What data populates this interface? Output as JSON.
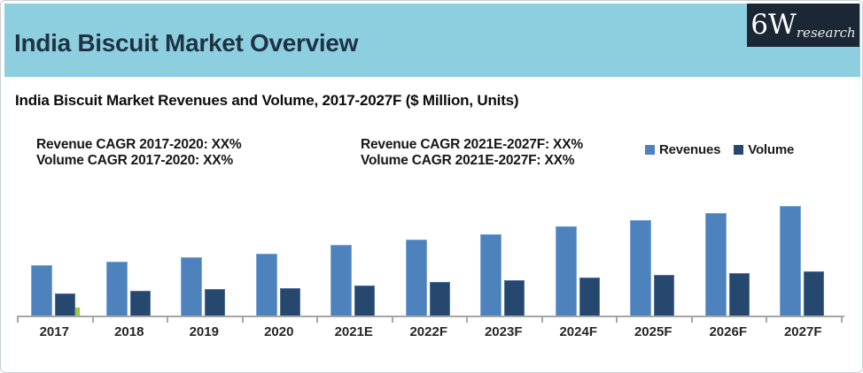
{
  "header": {
    "title": "India Biscuit Market Overview",
    "logo": {
      "main": "6W",
      "sub": "research"
    }
  },
  "subtitle": "India Biscuit Market Revenues and Volume, 2017-2027F ($ Million, Units)",
  "cagr": {
    "left": [
      "Revenue CAGR 2017-2020: XX%",
      "Volume CAGR 2017-2020: XX%"
    ],
    "right": [
      "Revenue CAGR 2021E-2027F: XX%",
      "Volume CAGR 2021E-2027F: XX%"
    ]
  },
  "legend": [
    {
      "label": "Revenues",
      "color": "#4d82bc"
    },
    {
      "label": "Volume",
      "color": "#26486f"
    }
  ],
  "colors": {
    "header_bg": "#8ecfdf",
    "header_text": "#1e3444",
    "logo_bg": "#1c2735",
    "revenue_fill": "#4d82bc",
    "revenue_border": "#7fa7d6",
    "volume_fill": "#26486f",
    "volume_border": "#50719c",
    "axis": "#a6a6a6",
    "stray_green": "#9cc83e"
  },
  "chart_data": {
    "type": "bar",
    "title": "India Biscuit Market Revenues and Volume, 2017-2027F ($ Million, Units)",
    "categories": [
      "2017",
      "2018",
      "2019",
      "2020",
      "2021E",
      "2022F",
      "2023F",
      "2024F",
      "2025F",
      "2026F",
      "2027F"
    ],
    "series": [
      {
        "name": "Revenues",
        "color": "#4d82bc",
        "values": [
          57,
          61,
          66,
          70,
          80,
          86,
          92,
          101,
          108,
          116,
          124
        ]
      },
      {
        "name": "Volume",
        "color": "#26486f",
        "values": [
          25,
          28,
          30,
          31,
          34,
          38,
          40,
          43,
          46,
          48,
          50
        ]
      }
    ],
    "xlabel": "",
    "ylabel": "",
    "value_axis_shown": false,
    "grid": false,
    "legend_position": "top-right",
    "note": "Numeric values are not labeled in the source (CAGR shown as XX%); series values are relative magnitudes read from bar heights."
  }
}
